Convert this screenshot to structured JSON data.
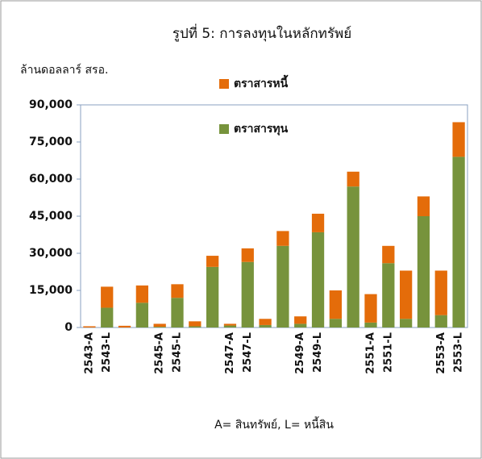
{
  "chart_data": {
    "type": "stacked_bar",
    "title": "รูปที่ 5: การลงทุนในหลักทรัพย์",
    "y_label": "ล้านดอลลาร์ สรอ.",
    "note": "A= สินทรัพย์, L= หนี้สิน",
    "categories": [
      "2543-A",
      "2543-L",
      null,
      null,
      "2545-A",
      "2545-L",
      null,
      null,
      "2547-A",
      "2547-L",
      null,
      null,
      "2549-A",
      "2549-L",
      null,
      null,
      "2551-A",
      "2551-L",
      null,
      null,
      "2553-A",
      "2553-L"
    ],
    "series": [
      {
        "name": "ตราสารทุน",
        "color": "#77933c",
        "values": [
          0,
          8000,
          0,
          10000,
          300,
          12000,
          500,
          24500,
          800,
          26500,
          1000,
          33000,
          1500,
          38500,
          3500,
          57000,
          2000,
          26000,
          3500,
          45000,
          5000,
          69000
        ]
      },
      {
        "name": "ตราสารหนี้",
        "color": "#e46c0a",
        "values": [
          500,
          8500,
          700,
          7000,
          1200,
          5500,
          2000,
          4500,
          700,
          5500,
          2500,
          6000,
          3000,
          7500,
          11500,
          6000,
          11500,
          7000,
          19500,
          8000,
          18000,
          14000
        ]
      }
    ],
    "ylim": [
      0,
      90000
    ],
    "yticks": [
      0,
      {
        "value": 15000,
        "label": "15,000"
      },
      {
        "value": 30000,
        "label": "30,000"
      },
      {
        "value": 45000,
        "label": "45,000"
      },
      {
        "value": 60000,
        "label": "60,000"
      },
      {
        "value": 75000,
        "label": "75,000"
      },
      {
        "value": 90000,
        "label": "90,000"
      }
    ]
  }
}
